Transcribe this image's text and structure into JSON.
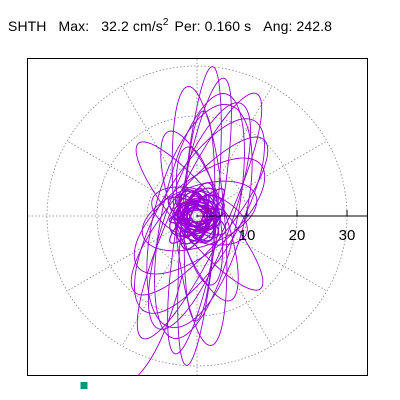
{
  "header": {
    "station": "SHTH",
    "max_label": "Max:",
    "max_value": "32.2",
    "max_unit": "cm/s",
    "max_unit_exp": "2",
    "per_label": "Per:",
    "per_value": "0.160",
    "per_unit": "s",
    "ang_label": "Ang:",
    "ang_value": "242.8"
  },
  "chart_data": {
    "type": "line",
    "polar_grid": true,
    "radial_ticks": [
      10,
      20,
      30
    ],
    "radial_tick_labels": [
      "10",
      "20",
      "30"
    ],
    "rmax": 36,
    "angle_grid_step_deg": 30,
    "grid": true,
    "trace_color": "#9400d3",
    "end_marker_color": "#009977",
    "end_point": {
      "x": -22.6,
      "y": -33.9
    },
    "loops": [
      {
        "a": 24,
        "b": 6.5,
        "rot": 70
      },
      {
        "a": 28,
        "b": 4.2,
        "rot": 80
      },
      {
        "a": 22,
        "b": 8.0,
        "rot": 60
      },
      {
        "a": 26,
        "b": 5.0,
        "rot": 95
      },
      {
        "a": 20,
        "b": 6.0,
        "rot": 50
      },
      {
        "a": 30,
        "b": 3.5,
        "rot": 85
      },
      {
        "a": 18,
        "b": 5.0,
        "rot": 110
      },
      {
        "a": 23,
        "b": 9.0,
        "rot": 75
      },
      {
        "a": 16,
        "b": 7.0,
        "rot": 40
      },
      {
        "a": 27,
        "b": 5.5,
        "rot": 65
      },
      {
        "a": 14,
        "b": 4.0,
        "rot": 100
      },
      {
        "a": 21,
        "b": 3.0,
        "rot": 88
      },
      {
        "a": 12,
        "b": 6.0,
        "rot": 20
      },
      {
        "a": 19,
        "b": 4.5,
        "rot": 130
      },
      {
        "a": 25,
        "b": 7.5,
        "rot": 78
      },
      {
        "a": 10,
        "b": 5.0,
        "rot": 160
      }
    ],
    "core": [
      {
        "a": 6.0,
        "b": 3.2,
        "rot": 30
      },
      {
        "a": 5.5,
        "b": 2.8,
        "rot": 120
      },
      {
        "a": 7.0,
        "b": 2.5,
        "rot": 70
      },
      {
        "a": 4.5,
        "b": 3.5,
        "rot": 10
      },
      {
        "a": 6.5,
        "b": 2.2,
        "rot": 150
      },
      {
        "a": 5.0,
        "b": 4.0,
        "rot": 90
      },
      {
        "a": 7.5,
        "b": 1.8,
        "rot": 45
      },
      {
        "a": 4.0,
        "b": 2.5,
        "rot": 100
      },
      {
        "a": 6.2,
        "b": 3.0,
        "rot": 60
      },
      {
        "a": 5.8,
        "b": 2.0,
        "rot": 135
      }
    ]
  }
}
